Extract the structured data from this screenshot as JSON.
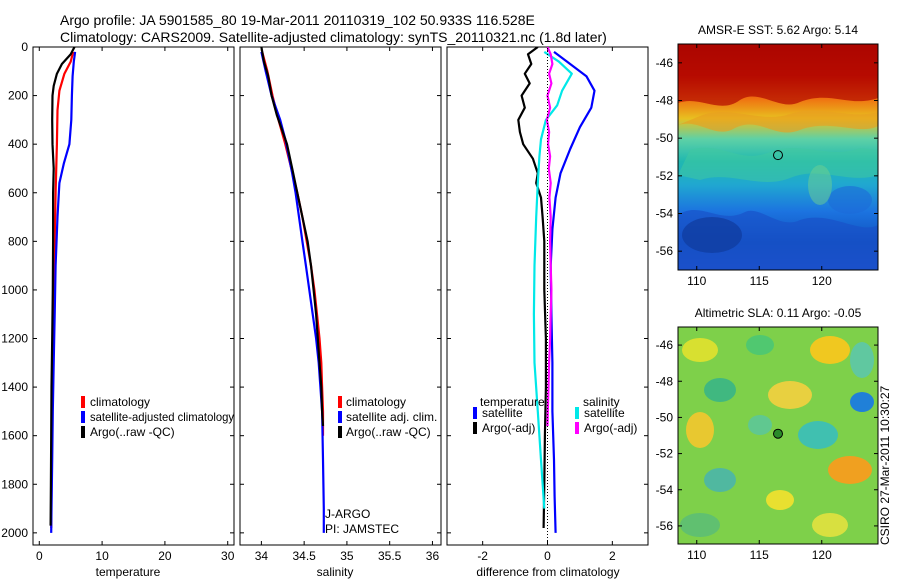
{
  "header": {
    "line1": "Argo profile: JA 5901585_80 19-Mar-2011 20110319_102 50.933S 116.528E",
    "line2": "Climatology: CARS2009. Satellite-adjusted climatology: synTS_20110321.nc (1.8d later)"
  },
  "colors": {
    "climatology": "#ff0000",
    "satellite": "#0000ff",
    "argo": "#000000",
    "cyan": "#00e8e8",
    "magenta": "#ff00ff"
  },
  "chart_data": [
    {
      "type": "line",
      "id": "temperature",
      "xlabel": "temperature",
      "xlim": [
        -1,
        31
      ],
      "ylim": [
        2050,
        0
      ],
      "x_ticks": [
        0,
        10,
        20,
        30
      ],
      "y_ticks": [
        0,
        200,
        400,
        600,
        800,
        1000,
        1200,
        1400,
        1600,
        1800,
        2000
      ],
      "series": [
        {
          "name": "climatology",
          "color": "#ff0000",
          "points": [
            [
              5.4,
              20
            ],
            [
              5.0,
              60
            ],
            [
              4.0,
              110
            ],
            [
              3.2,
              180
            ],
            [
              2.9,
              260
            ],
            [
              2.8,
              400
            ],
            [
              2.6,
              600
            ],
            [
              2.45,
              800
            ],
            [
              2.3,
              1000
            ],
            [
              2.2,
              1200
            ],
            [
              2.1,
              1400
            ],
            [
              2.0,
              1600
            ],
            [
              1.95,
              1800
            ],
            [
              1.9,
              1980
            ]
          ]
        },
        {
          "name": "satellite-adjusted climatology",
          "color": "#0000ff",
          "points": [
            [
              5.7,
              20
            ],
            [
              5.5,
              60
            ],
            [
              5.3,
              120
            ],
            [
              5.2,
              200
            ],
            [
              5.1,
              300
            ],
            [
              4.8,
              400
            ],
            [
              3.9,
              480
            ],
            [
              3.2,
              560
            ],
            [
              2.9,
              700
            ],
            [
              2.6,
              900
            ],
            [
              2.45,
              1100
            ],
            [
              2.3,
              1300
            ],
            [
              2.15,
              1500
            ],
            [
              2.05,
              1700
            ],
            [
              1.95,
              1900
            ],
            [
              1.9,
              2000
            ]
          ]
        },
        {
          "name": "Argo(..raw -QC)",
          "color": "#000000",
          "points": [
            [
              5.6,
              0
            ],
            [
              5.0,
              30
            ],
            [
              3.6,
              70
            ],
            [
              2.8,
              110
            ],
            [
              2.3,
              160
            ],
            [
              2.1,
              200
            ],
            [
              2.05,
              300
            ],
            [
              2.1,
              400
            ],
            [
              2.3,
              500
            ],
            [
              2.2,
              600
            ],
            [
              2.2,
              800
            ],
            [
              2.15,
              1000
            ],
            [
              2.05,
              1200
            ],
            [
              1.95,
              1400
            ],
            [
              1.9,
              1600
            ],
            [
              1.85,
              1800
            ],
            [
              1.8,
              1970
            ]
          ]
        }
      ],
      "legend": [
        "climatology",
        "satellite-adjusted climatology",
        "Argo(..raw -QC)"
      ]
    },
    {
      "type": "line",
      "id": "salinity",
      "xlabel": "salinity",
      "xlim": [
        33.75,
        36.1
      ],
      "ylim": [
        2050,
        0
      ],
      "x_ticks": [
        34,
        34.5,
        35,
        35.5,
        36
      ],
      "x_tick_labels": [
        "34",
        "34.5",
        "35",
        "35.5",
        "36"
      ],
      "series": [
        {
          "name": "climatology",
          "color": "#ff0000",
          "points": [
            [
              34.01,
              20
            ],
            [
              34.07,
              100
            ],
            [
              34.13,
              200
            ],
            [
              34.2,
              300
            ],
            [
              34.28,
              400
            ],
            [
              34.35,
              500
            ],
            [
              34.42,
              600
            ],
            [
              34.48,
              700
            ],
            [
              34.53,
              800
            ],
            [
              34.58,
              900
            ],
            [
              34.62,
              1000
            ],
            [
              34.65,
              1100
            ],
            [
              34.68,
              1200
            ],
            [
              34.7,
              1300
            ],
            [
              34.71,
              1400
            ],
            [
              34.72,
              1500
            ],
            [
              34.72,
              1600
            ]
          ]
        },
        {
          "name": "satellite adj. clim.",
          "color": "#0000ff",
          "points": [
            [
              34.0,
              20
            ],
            [
              34.05,
              100
            ],
            [
              34.12,
              200
            ],
            [
              34.22,
              300
            ],
            [
              34.28,
              380
            ],
            [
              34.32,
              450
            ],
            [
              34.36,
              520
            ],
            [
              34.4,
              600
            ],
            [
              34.44,
              700
            ],
            [
              34.48,
              800
            ],
            [
              34.52,
              900
            ],
            [
              34.56,
              1000
            ],
            [
              34.6,
              1100
            ],
            [
              34.64,
              1200
            ],
            [
              34.67,
              1300
            ],
            [
              34.69,
              1400
            ],
            [
              34.71,
              1500
            ],
            [
              34.72,
              1700
            ],
            [
              34.73,
              1900
            ],
            [
              34.73,
              2000
            ]
          ]
        },
        {
          "name": "Argo(..raw -QC)",
          "color": "#000000",
          "points": [
            [
              34.0,
              0
            ],
            [
              34.03,
              60
            ],
            [
              34.08,
              120
            ],
            [
              34.12,
              200
            ],
            [
              34.18,
              280
            ],
            [
              34.25,
              350
            ],
            [
              34.3,
              400
            ],
            [
              34.36,
              500
            ],
            [
              34.42,
              600
            ],
            [
              34.48,
              700
            ],
            [
              34.54,
              800
            ],
            [
              34.58,
              900
            ],
            [
              34.61,
              1000
            ],
            [
              34.64,
              1100
            ],
            [
              34.66,
              1200
            ],
            [
              34.68,
              1300
            ],
            [
              34.7,
              1400
            ],
            [
              34.71,
              1500
            ],
            [
              34.72,
              1560
            ]
          ]
        }
      ],
      "legend": [
        "climatology",
        "satellite adj. clim.",
        "Argo(..raw -QC)"
      ],
      "annotations": [
        "J-ARGO",
        "PI: JAMSTEC"
      ]
    },
    {
      "type": "line",
      "id": "difference",
      "xlabel": "difference from climatology",
      "xlim": [
        -3.1,
        3.1
      ],
      "ylim": [
        2050,
        0
      ],
      "x_ticks": [
        -2,
        0,
        2
      ],
      "series": [
        {
          "name": "temperature satellite",
          "color": "#0000ff",
          "points": [
            [
              0.2,
              20
            ],
            [
              0.6,
              60
            ],
            [
              1.2,
              120
            ],
            [
              1.45,
              180
            ],
            [
              1.35,
              250
            ],
            [
              1.0,
              330
            ],
            [
              0.7,
              420
            ],
            [
              0.4,
              520
            ],
            [
              0.25,
              620
            ],
            [
              0.15,
              750
            ],
            [
              0.1,
              900
            ],
            [
              0.12,
              1100
            ],
            [
              0.15,
              1300
            ],
            [
              0.15,
              1500
            ],
            [
              0.2,
              1700
            ],
            [
              0.22,
              1850
            ],
            [
              0.25,
              2000
            ]
          ]
        },
        {
          "name": "temperature Argo(-adj)",
          "color": "#000000",
          "points": [
            [
              -0.3,
              0
            ],
            [
              -0.6,
              30
            ],
            [
              -0.5,
              70
            ],
            [
              -0.7,
              110
            ],
            [
              -0.55,
              150
            ],
            [
              -0.8,
              200
            ],
            [
              -0.7,
              250
            ],
            [
              -0.9,
              300
            ],
            [
              -0.85,
              350
            ],
            [
              -0.75,
              400
            ],
            [
              -0.45,
              460
            ],
            [
              -0.3,
              520
            ],
            [
              -0.35,
              560
            ],
            [
              -0.2,
              620
            ],
            [
              -0.15,
              700
            ],
            [
              -0.1,
              800
            ],
            [
              -0.1,
              900
            ],
            [
              -0.1,
              1000
            ],
            [
              -0.05,
              1200
            ],
            [
              -0.05,
              1400
            ],
            [
              -0.08,
              1600
            ],
            [
              -0.1,
              1800
            ],
            [
              -0.12,
              1980
            ]
          ]
        },
        {
          "name": "salinity satellite",
          "color": "#00e8e8",
          "points": [
            [
              -0.1,
              20
            ],
            [
              0.35,
              60
            ],
            [
              0.75,
              110
            ],
            [
              0.45,
              180
            ],
            [
              0.3,
              240
            ],
            [
              -0.05,
              300
            ],
            [
              -0.2,
              380
            ],
            [
              -0.25,
              450
            ],
            [
              -0.3,
              560
            ],
            [
              -0.35,
              700
            ],
            [
              -0.4,
              900
            ],
            [
              -0.42,
              1100
            ],
            [
              -0.4,
              1300
            ],
            [
              -0.3,
              1500
            ],
            [
              -0.2,
              1700
            ],
            [
              -0.1,
              1900
            ]
          ]
        },
        {
          "name": "salinity Argo(-adj)",
          "color": "#ff00ff",
          "points": [
            [
              0.0,
              0
            ],
            [
              0.1,
              30
            ],
            [
              0.15,
              70
            ],
            [
              0.05,
              110
            ],
            [
              0.12,
              150
            ],
            [
              0.0,
              200
            ],
            [
              0.08,
              250
            ],
            [
              -0.02,
              300
            ],
            [
              0.05,
              350
            ],
            [
              0.02,
              400
            ],
            [
              0.08,
              450
            ],
            [
              0.04,
              500
            ],
            [
              0.1,
              560
            ],
            [
              0.06,
              620
            ],
            [
              0.1,
              700
            ],
            [
              0.08,
              800
            ],
            [
              0.1,
              900
            ],
            [
              0.12,
              1000
            ],
            [
              0.1,
              1100
            ],
            [
              0.08,
              1200
            ],
            [
              0.05,
              1300
            ],
            [
              0.03,
              1400
            ],
            [
              0.01,
              1500
            ],
            [
              0.0,
              1560
            ]
          ]
        }
      ],
      "legend_headers": [
        "temperature",
        "salinity"
      ],
      "legend": [
        "satellite",
        "Argo(-adj)",
        "satellite",
        "Argo(-adj)"
      ]
    },
    {
      "type": "heatmap",
      "id": "sst_map",
      "title": "AMSR-E SST: 5.62 Argo: 5.14",
      "x_ticks": [
        110,
        115,
        120
      ],
      "y_ticks": [
        -46,
        -48,
        -50,
        -52,
        -54,
        -56
      ],
      "marker": [
        116.5,
        -50.9
      ]
    },
    {
      "type": "heatmap",
      "id": "sla_map",
      "title": "Altimetric SLA: 0.11 Argo: -0.05",
      "x_ticks": [
        110,
        115,
        120
      ],
      "y_ticks": [
        -46,
        -48,
        -50,
        -52,
        -54,
        -56
      ],
      "marker": [
        116.5,
        -50.9
      ],
      "side_label": "CSIRO 27-Mar-2011 10:30:27"
    }
  ]
}
